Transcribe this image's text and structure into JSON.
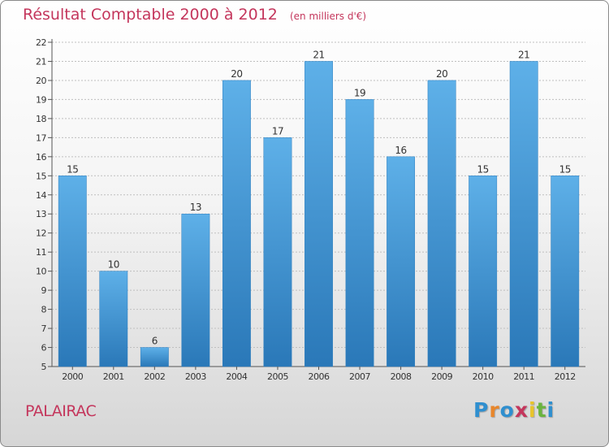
{
  "chart_data": {
    "type": "bar",
    "title": "Résultat Comptable 2000 à 2012",
    "unit": "(en milliers d'€)",
    "categories": [
      "2000",
      "2001",
      "2002",
      "2003",
      "2004",
      "2005",
      "2006",
      "2007",
      "2008",
      "2009",
      "2010",
      "2011",
      "2012"
    ],
    "values": [
      15,
      10,
      6,
      13,
      20,
      17,
      21,
      19,
      16,
      20,
      15,
      21,
      15
    ],
    "ylim": [
      5,
      22
    ],
    "yticks": [
      5,
      6,
      7,
      8,
      9,
      10,
      11,
      12,
      13,
      14,
      15,
      16,
      17,
      18,
      19,
      20,
      21,
      22
    ],
    "grid": true,
    "xlabel": "",
    "ylabel": "",
    "bar_color": "#4f9fdc"
  },
  "commune": "PALAIRAC",
  "brand": {
    "letters": [
      "P",
      "r",
      "o",
      "x",
      "i",
      "t",
      "i"
    ],
    "colors": [
      "#2f8fcf",
      "#e8862b",
      "#2f8fcf",
      "#c4365c",
      "#e8c42b",
      "#6ab43e",
      "#2f8fcf"
    ]
  }
}
